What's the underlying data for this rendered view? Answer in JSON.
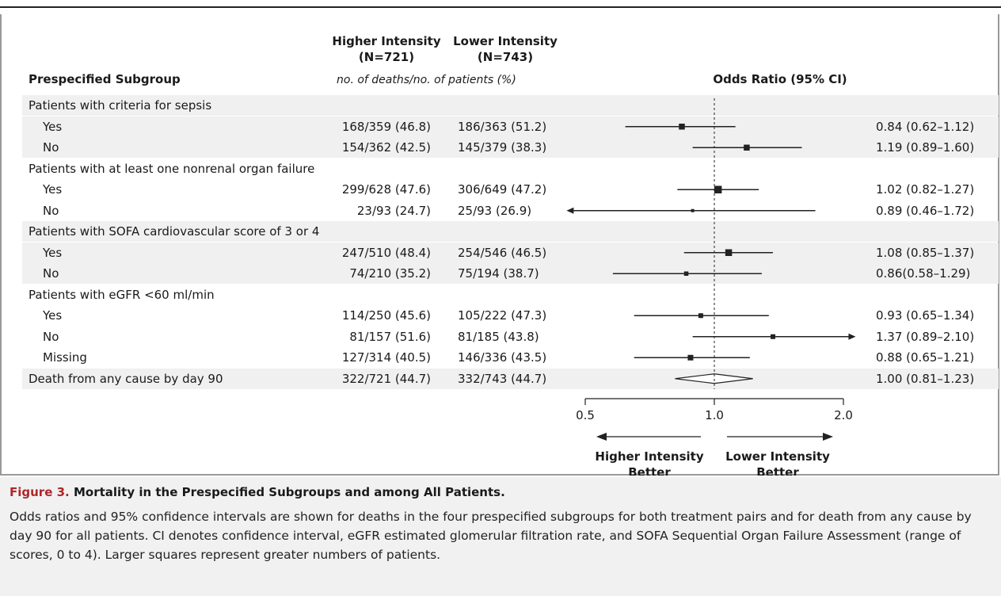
{
  "header": {
    "subgroup_col": "Prespecified Subgroup",
    "higher_col": "Higher Intensity",
    "higher_n": "(N=721)",
    "lower_col": "Lower Intensity",
    "lower_n": "(N=743)",
    "counts_note": "no. of deaths/no. of patients (%)",
    "or_col": "Odds Ratio (95% CI)"
  },
  "chart_data": {
    "type": "forest",
    "x_scale": "log",
    "x_ticks": [
      {
        "value": 0.5,
        "label": "0.5"
      },
      {
        "value": 1.0,
        "label": "1.0"
      },
      {
        "value": 2.0,
        "label": "2.0"
      }
    ],
    "reference_line": 1.0,
    "direction_labels": {
      "left": "Higher Intensity Better",
      "right": "Lower Intensity Better"
    },
    "rows": [
      {
        "label": "Patients with criteria for sepsis",
        "level": 0,
        "shade": true
      },
      {
        "label": "Yes",
        "level": 1,
        "higher": "168/359 (46.8)",
        "lower": "186/363 (51.2)",
        "or": 0.84,
        "lo": 0.62,
        "hi": 1.12,
        "or_text": "0.84 (0.62–1.12)",
        "size": 0.9,
        "shade": true
      },
      {
        "label": "No",
        "level": 1,
        "higher": "154/362 (42.5)",
        "lower": "145/379 (38.3)",
        "or": 1.19,
        "lo": 0.89,
        "hi": 1.6,
        "or_text": "1.19 (0.89–1.60)",
        "size": 0.9,
        "shade": true
      },
      {
        "label": "Patients with at least one nonrenal organ failure",
        "level": 0,
        "shade": false
      },
      {
        "label": "Yes",
        "level": 1,
        "higher": "299/628 (47.6)",
        "lower": "306/649 (47.2)",
        "or": 1.02,
        "lo": 0.82,
        "hi": 1.27,
        "or_text": "1.02 (0.82–1.27)",
        "size": 1.3,
        "shade": false
      },
      {
        "label": "No",
        "level": 1,
        "higher": "23/93 (24.7)",
        "lower": "25/93 (26.9)",
        "or": 0.89,
        "lo": 0.46,
        "hi": 1.72,
        "or_text": "0.89 (0.46–1.72)",
        "size": 0.2,
        "arrow_left": true,
        "shade": false
      },
      {
        "label": "Patients with SOFA cardiovascular score of 3 or 4",
        "level": 0,
        "shade": true
      },
      {
        "label": "Yes",
        "level": 1,
        "higher": "247/510 (48.4)",
        "lower": "254/546 (46.5)",
        "or": 1.08,
        "lo": 0.85,
        "hi": 1.37,
        "or_text": "1.08 (0.85–1.37)",
        "size": 1.1,
        "shade": true
      },
      {
        "label": "No",
        "level": 1,
        "higher": "74/210 (35.2)",
        "lower": "75/194 (38.7)",
        "or": 0.86,
        "lo": 0.58,
        "hi": 1.29,
        "or_text": "0.86(0.58–1.29)",
        "size": 0.5,
        "shade": true
      },
      {
        "label": "Patients with eGFR <60 ml/min",
        "level": 0,
        "shade": false
      },
      {
        "label": "Yes",
        "level": 1,
        "higher": "114/250 (45.6)",
        "lower": "105/222 (47.3)",
        "or": 0.93,
        "lo": 0.65,
        "hi": 1.34,
        "or_text": "0.93 (0.65–1.34)",
        "size": 0.6,
        "shade": false
      },
      {
        "label": "No",
        "level": 1,
        "higher": "81/157 (51.6)",
        "lower": "81/185 (43.8)",
        "or": 1.37,
        "lo": 0.89,
        "hi": 2.1,
        "or_text": "1.37 (0.89–2.10)",
        "size": 0.6,
        "arrow_right": true,
        "shade": false
      },
      {
        "label": "Missing",
        "level": 1,
        "higher": "127/314 (40.5)",
        "lower": "146/336 (43.5)",
        "or": 0.88,
        "lo": 0.65,
        "hi": 1.21,
        "or_text": "0.88 (0.65–1.21)",
        "size": 0.8,
        "shade": false
      },
      {
        "label": "Death from any cause by day 90",
        "level": 0,
        "higher": "322/721 (44.7)",
        "lower": "332/743 (44.7)",
        "or": 1.0,
        "lo": 0.81,
        "hi": 1.23,
        "or_text": "1.00 (0.81–1.23)",
        "diamond": true,
        "shade": true
      }
    ]
  },
  "caption": {
    "fig_num": "Figure 3.",
    "title": " Mortality in the Prespecified Subgroups and among All Patients.",
    "text": "Odds ratios and 95% confidence intervals are shown for deaths in the four prespecified subgroups for both treatment pairs and for death from any cause by day 90 for all patients. CI denotes confidence interval, eGFR estimated glomerular filtration rate, and SOFA Sequential Organ Failure Assessment (range of scores, 0 to 4). Larger squares represent greater numbers of patients."
  }
}
